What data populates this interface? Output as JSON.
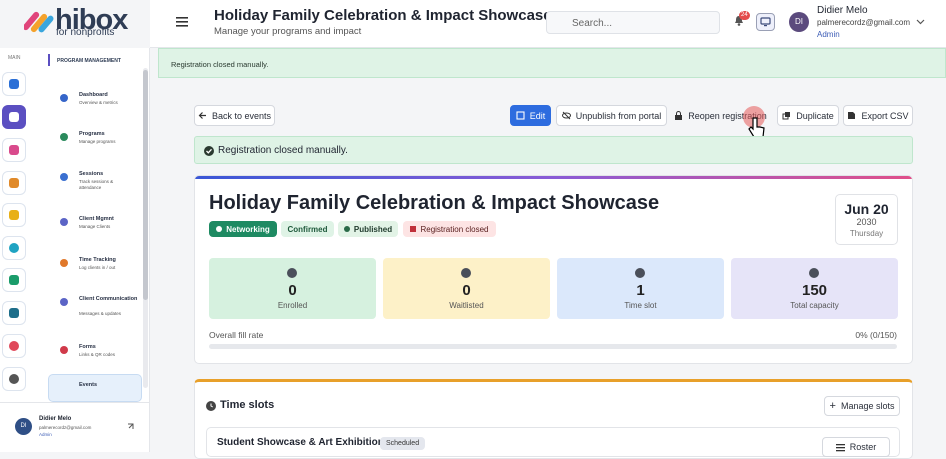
{
  "logo": {
    "name": "hibox",
    "tagline": "for nonprofits"
  },
  "header": {
    "title": "Holiday Family Celebration & Impact Showcase",
    "subtitle": "Manage your programs and impact",
    "search_placeholder": "Search...",
    "notification_count": "24",
    "user": {
      "initials": "DI",
      "name": "Didier Melo",
      "email": "palmerecordz@gmail.com",
      "role": "Admin"
    }
  },
  "toast": "Registration closed manually.",
  "sidebar": {
    "rail_label": "MAIN",
    "section_title": "PROGRAM MANAGEMENT",
    "items": [
      {
        "label": "Dashboard",
        "description": "Overview & metrics"
      },
      {
        "label": "Programs",
        "description": "Manage programs"
      },
      {
        "label": "Sessions",
        "description": "Track sessions & attendance"
      },
      {
        "label": "Client Mgmnt",
        "description": "Manage Clients"
      },
      {
        "label": "Time Tracking",
        "description": "Log clients in / out"
      },
      {
        "label": "Client Communication",
        "description": "Messages & updates"
      },
      {
        "label": "Forms",
        "description": "Links & QR codes"
      },
      {
        "label": "Events"
      }
    ],
    "user": {
      "initials": "DI",
      "name": "Didier Melo",
      "email": "palmerecordz@gmail.com",
      "role": "Admin"
    }
  },
  "actions": {
    "back": "Back to events",
    "buttons": [
      "Edit",
      "Unpublish from portal",
      "Reopen registration",
      "Duplicate",
      "Export CSV"
    ]
  },
  "alert": "Registration closed manually.",
  "event": {
    "title": "Holiday Family Celebration & Impact Showcase",
    "badges": [
      "Networking",
      "Confirmed",
      "Published",
      "Registration closed"
    ],
    "date": {
      "month_day": "Jun 20",
      "year": "2030",
      "weekday": "Thursday"
    },
    "stats": [
      {
        "value": 0,
        "label": "Enrolled"
      },
      {
        "value": 0,
        "label": "Waitlisted"
      },
      {
        "value": 1,
        "label": "Time slot"
      },
      {
        "value": 150,
        "label": "Total capacity"
      }
    ],
    "fill_rate": {
      "label": "Overall fill rate",
      "value_text": "0% (0/150)"
    }
  },
  "time_slots": {
    "title": "Time slots",
    "manage_button": "Manage slots",
    "slots": [
      {
        "name": "Student Showcase & Art Exhibition",
        "status": "Scheduled",
        "action": "Roster"
      }
    ]
  }
}
